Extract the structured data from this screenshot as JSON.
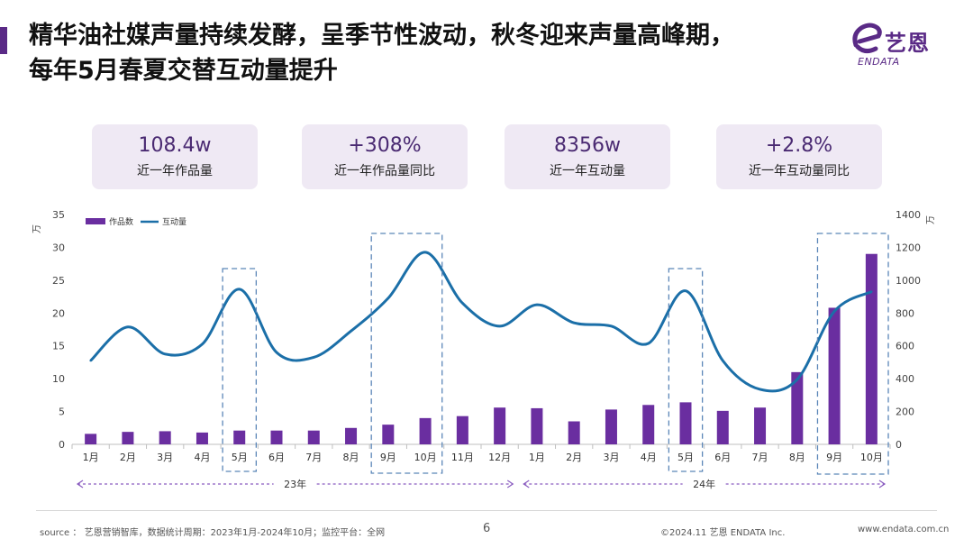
{
  "header": {
    "title_line1": "精华油社媒声量持续发酵，呈季节性波动，秋冬迎来声量高峰期，",
    "title_line2": "每年5月春夏交替互动量提升"
  },
  "logo": {
    "cn": "艺恩",
    "en": "ENDATA",
    "mark": "e-logo-icon"
  },
  "kpis": [
    {
      "value": "108.4w",
      "label": "近一年作品量"
    },
    {
      "value": "+308%",
      "label": "近一年作品量同比"
    },
    {
      "value": "8356w",
      "label": "近一年互动量"
    },
    {
      "value": "+2.8%",
      "label": "近一年互动量同比"
    }
  ],
  "chart_data": {
    "type": "bar+line",
    "categories": [
      "1月",
      "2月",
      "3月",
      "4月",
      "5月",
      "6月",
      "7月",
      "8月",
      "9月",
      "10月",
      "11月",
      "12月",
      "1月",
      "2月",
      "3月",
      "4月",
      "5月",
      "6月",
      "7月",
      "8月",
      "9月",
      "10月"
    ],
    "series": [
      {
        "name": "作品数",
        "type": "bar",
        "axis": "left",
        "color": "#6a2ea0",
        "values": [
          1.6,
          1.9,
          2.0,
          1.8,
          2.1,
          2.1,
          2.1,
          2.5,
          3.0,
          4.0,
          4.3,
          5.6,
          5.5,
          3.5,
          5.3,
          6.0,
          6.4,
          5.1,
          5.6,
          11.0,
          20.8,
          29.0
        ]
      },
      {
        "name": "互动量",
        "type": "line",
        "axis": "right",
        "color": "#1b6fa8",
        "values": [
          510,
          715,
          550,
          610,
          945,
          560,
          530,
          690,
          890,
          1170,
          860,
          720,
          850,
          740,
          720,
          615,
          935,
          510,
          335,
          395,
          810,
          930
        ]
      }
    ],
    "y_left": {
      "unit": "万",
      "ylim": [
        0,
        35
      ],
      "ticks": [
        0,
        5,
        10,
        15,
        20,
        25,
        30,
        35
      ]
    },
    "y_right": {
      "unit": "万",
      "ylim": [
        0,
        1400
      ],
      "ticks": [
        0,
        200,
        400,
        600,
        800,
        1000,
        1200,
        1400
      ]
    },
    "year_groups": [
      {
        "label": "23年",
        "start": 0,
        "end": 11
      },
      {
        "label": "24年",
        "start": 12,
        "end": 21
      }
    ],
    "highlight_groups": [
      [
        4,
        4
      ],
      [
        8,
        9
      ],
      [
        16,
        16
      ],
      [
        20,
        21
      ]
    ],
    "legend_position": "top-left"
  },
  "footer": {
    "source": "source ： 艺恩营销智库，数据统计周期：2023年1月-2024年10月；监控平台：全网",
    "page": "6",
    "copyright": "©2024.11 艺恩 ENDATA Inc.",
    "url": "www.endata.com.cn"
  }
}
